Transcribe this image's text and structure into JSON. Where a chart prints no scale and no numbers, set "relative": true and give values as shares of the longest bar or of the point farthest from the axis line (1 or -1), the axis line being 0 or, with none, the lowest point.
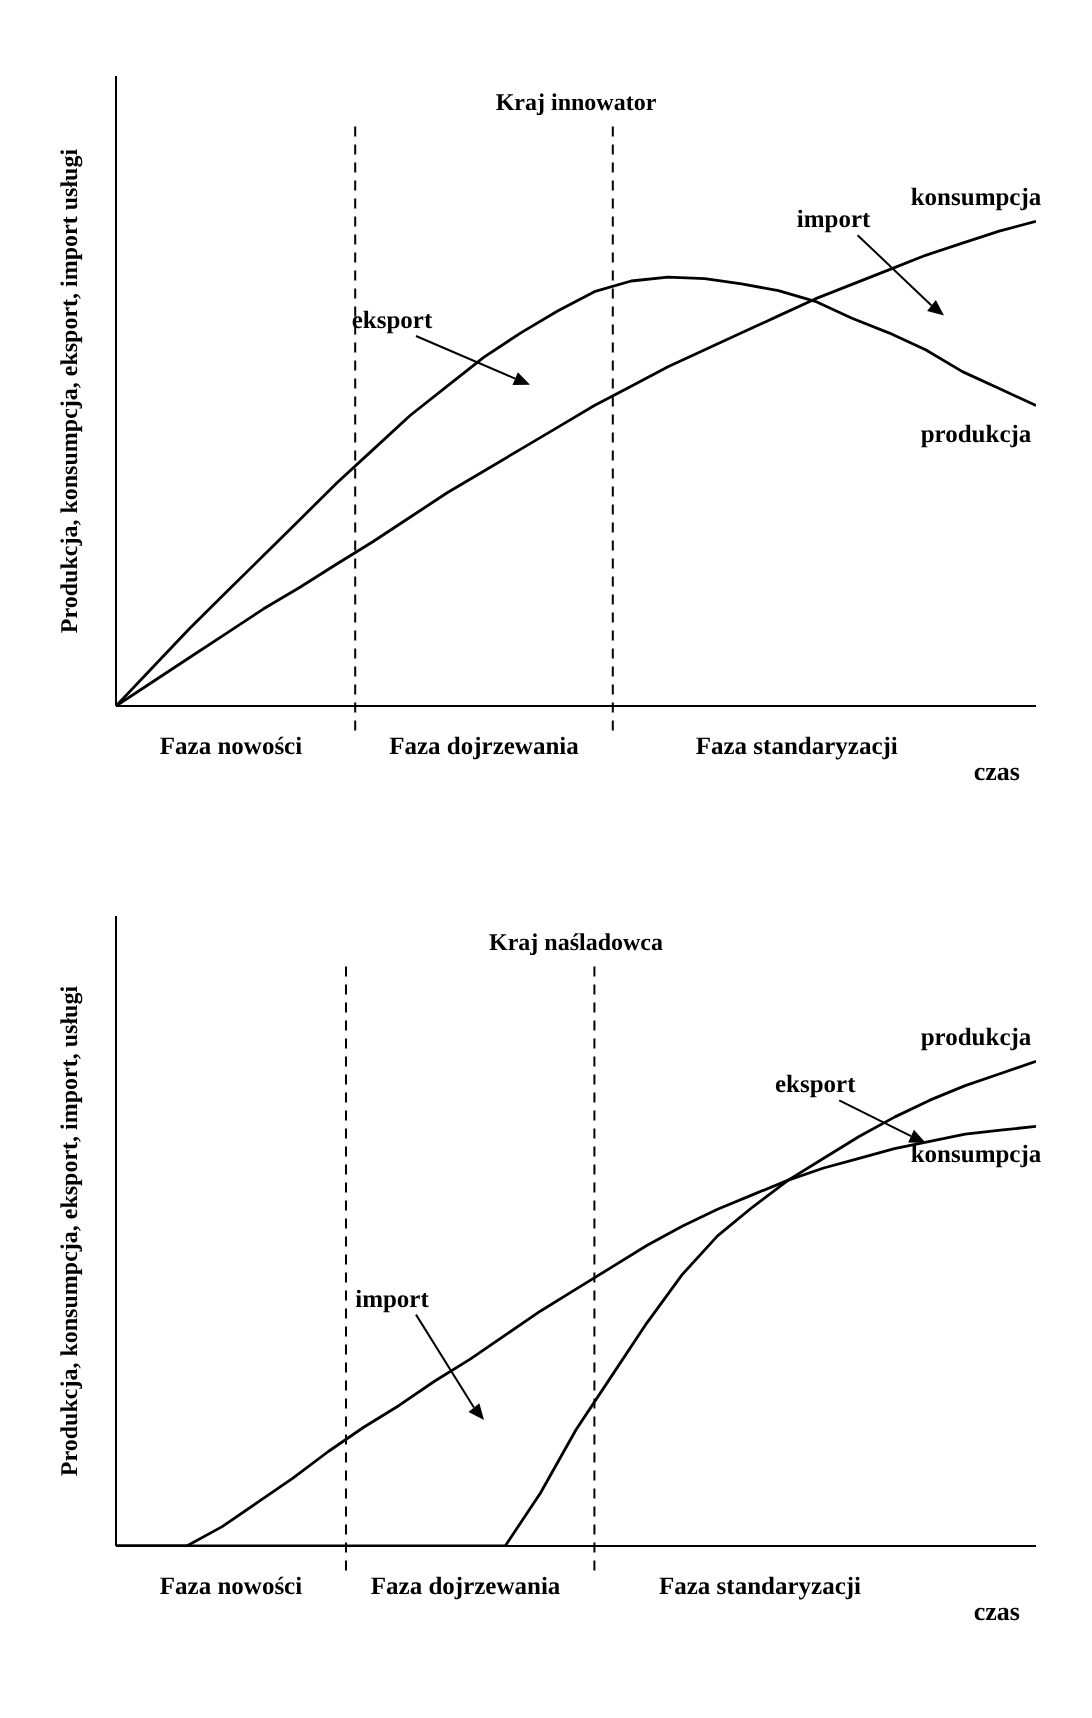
{
  "chart_data": [
    {
      "type": "line",
      "title": "Kraj innowator",
      "xlabel": "czas",
      "ylabel": "Produkcja, konsumpcja, eksport, import usługi",
      "relative": true,
      "grid": false,
      "marker": "none",
      "line_style": "solid",
      "categories": [
        null,
        null,
        null,
        null,
        null,
        null,
        null,
        null,
        null,
        null,
        null,
        null,
        null,
        null,
        null,
        null,
        null,
        null,
        null,
        null,
        null,
        null,
        null,
        null,
        null,
        null
      ],
      "series": [
        {
          "name": "konsumpcja",
          "color": "#000000",
          "values": [
            0,
            0.05,
            0.1,
            0.15,
            0.2,
            0.245,
            0.293,
            0.34,
            0.39,
            0.44,
            0.485,
            0.53,
            0.575,
            0.62,
            0.66,
            0.7,
            0.735,
            0.77,
            0.805,
            0.84,
            0.87,
            0.9,
            0.93,
            0.955,
            0.98,
            1
          ]
        },
        {
          "name": "produkcja",
          "color": "#000000",
          "values": [
            0,
            0.08,
            0.16,
            0.235,
            0.31,
            0.385,
            0.46,
            0.53,
            0.6,
            0.66,
            0.72,
            0.77,
            0.815,
            0.855,
            0.877,
            0.885,
            0.882,
            0.871,
            0.857,
            0.835,
            0.8,
            0.77,
            0.735,
            0.69,
            0.655,
            0.62
          ]
        }
      ],
      "annotations": [
        "eksport",
        "import",
        "Faza nowości",
        "Faza dojrzewania",
        "Faza standaryzacji"
      ]
    },
    {
      "type": "line",
      "title": "Kraj naśladowca",
      "xlabel": "czas",
      "ylabel": "Produkcja, konsumpcja, eksport, import, usługi",
      "relative": true,
      "grid": false,
      "marker": "none",
      "line_style": "solid",
      "categories": [
        null,
        null,
        null,
        null,
        null,
        null,
        null,
        null,
        null,
        null,
        null,
        null,
        null,
        null,
        null,
        null,
        null,
        null,
        null,
        null,
        null,
        null,
        null,
        null,
        null,
        null,
        null
      ],
      "series": [
        {
          "name": "produkcja",
          "color": "#000000",
          "values": [
            0,
            0,
            0,
            0,
            0,
            0,
            0,
            0,
            0,
            0,
            0,
            0,
            0.11,
            0.24,
            0.35,
            0.46,
            0.56,
            0.64,
            0.7,
            0.755,
            0.8,
            0.845,
            0.885,
            0.92,
            0.95,
            0.975,
            1
          ]
        },
        {
          "name": "konsumpcja",
          "color": "#000000",
          "values": [
            0,
            0,
            0,
            0.04,
            0.09,
            0.14,
            0.195,
            0.245,
            0.29,
            0.34,
            0.385,
            0.435,
            0.485,
            0.53,
            0.575,
            0.62,
            0.66,
            0.695,
            0.725,
            0.755,
            0.78,
            0.8,
            0.82,
            0.835,
            0.85,
            0.858,
            0.866
          ]
        }
      ],
      "annotations": [
        "import",
        "eksport",
        "Faza nowości",
        "Faza dojrzewania",
        "Faza standaryzacji"
      ]
    }
  ]
}
